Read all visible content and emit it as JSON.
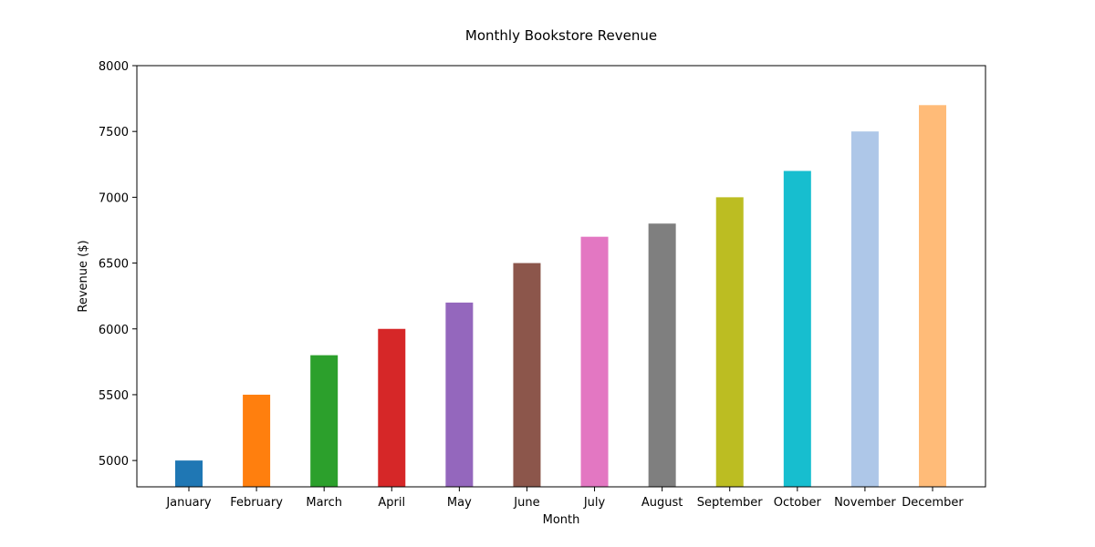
{
  "chart_data": {
    "type": "bar",
    "title": "Monthly Bookstore Revenue",
    "xlabel": "Month",
    "ylabel": "Revenue ($)",
    "categories": [
      "January",
      "February",
      "March",
      "April",
      "May",
      "June",
      "July",
      "August",
      "September",
      "October",
      "November",
      "December"
    ],
    "values": [
      5000,
      5500,
      5800,
      6000,
      6200,
      6500,
      6700,
      6800,
      7000,
      7200,
      7500,
      7700
    ],
    "colors": [
      "#1f77b4",
      "#ff7f0e",
      "#2ca02c",
      "#d62728",
      "#9467bd",
      "#8c564b",
      "#e377c2",
      "#7f7f7f",
      "#bcbd22",
      "#17becf",
      "#aec7e8",
      "#ffbb78"
    ],
    "ylim": [
      4800,
      8000
    ],
    "yticks": [
      5000,
      5500,
      6000,
      6500,
      7000,
      7500,
      8000
    ],
    "grid": false,
    "legend": "none"
  }
}
